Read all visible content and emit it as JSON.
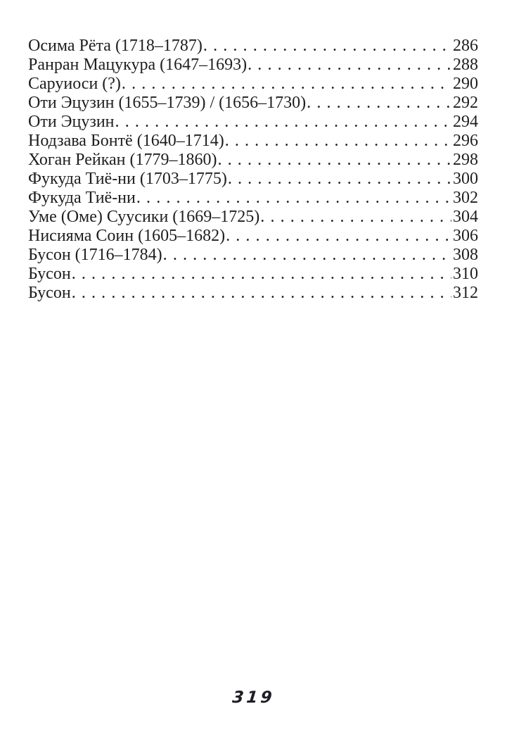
{
  "page": {
    "background_color": "#ffffff",
    "ink_color": "#1e1e1e",
    "folio_number": "319"
  },
  "toc": {
    "entries": [
      {
        "label": "Осима Рёта (1718–1787)",
        "page": "286"
      },
      {
        "label": "Ранран Мацукура (1647–1693)",
        "page": "288"
      },
      {
        "label": "Саруиоси (?)",
        "page": "290"
      },
      {
        "label": "Оти Эцузин (1655–1739) / (1656–1730)",
        "page": "292"
      },
      {
        "label": "Оти Эцузин",
        "page": "294"
      },
      {
        "label": "Нодзава Бонтё (1640–1714)",
        "page": "296"
      },
      {
        "label": "Хоган Рейкан (1779–1860)",
        "page": "298"
      },
      {
        "label": "Фукуда Тиё-ни (1703–1775)",
        "page": "300"
      },
      {
        "label": "Фукуда Тиё-ни",
        "page": "302"
      },
      {
        "label": "Уме (Оме) Суусики (1669–1725)",
        "page": "304"
      },
      {
        "label": "Нисияма Соин (1605–1682)",
        "page": "306"
      },
      {
        "label": "Бусон (1716–1784)",
        "page": "308"
      },
      {
        "label": "Бусон",
        "page": "310"
      },
      {
        "label": "Бусон",
        "page": "312"
      }
    ]
  }
}
